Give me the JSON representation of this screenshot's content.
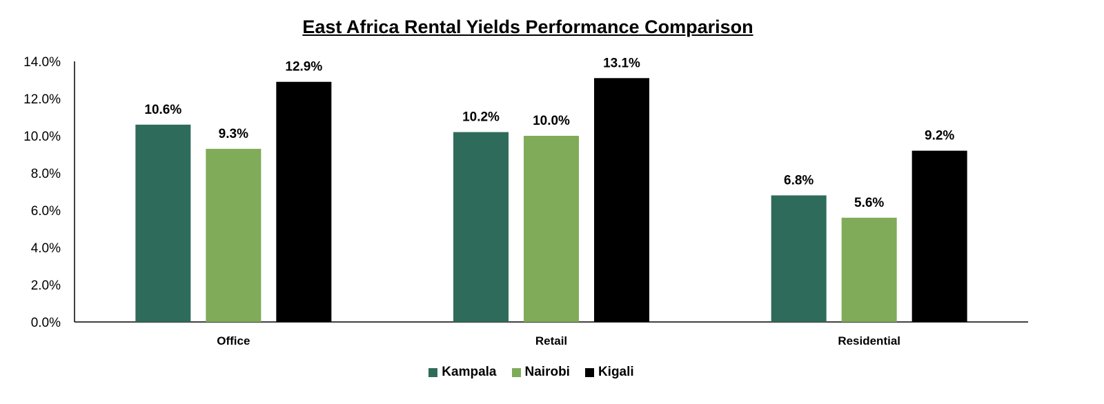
{
  "chart_data": {
    "type": "bar",
    "title": "East Africa Rental Yields Performance Comparison",
    "categories": [
      "Office",
      "Retail",
      "Residential"
    ],
    "series": [
      {
        "name": "Kampala",
        "values": [
          10.6,
          10.2,
          6.8
        ],
        "color": "#2f6b5b",
        "labels": [
          "10.6%",
          "10.2%",
          "6.8%"
        ]
      },
      {
        "name": "Nairobi",
        "values": [
          9.3,
          10.0,
          5.6
        ],
        "color": "#80ab58",
        "labels": [
          "9.3%",
          "10.0%",
          "5.6%"
        ]
      },
      {
        "name": "Kigali",
        "values": [
          12.9,
          13.1,
          9.2
        ],
        "color": "#000000",
        "labels": [
          "12.9%",
          "13.1%",
          "9.2%"
        ]
      }
    ],
    "ylim": [
      0,
      14
    ],
    "yticks": [
      "0.0%",
      "2.0%",
      "4.0%",
      "6.0%",
      "8.0%",
      "10.0%",
      "12.0%",
      "14.0%"
    ],
    "grid": false,
    "legend_position": "bottom"
  }
}
